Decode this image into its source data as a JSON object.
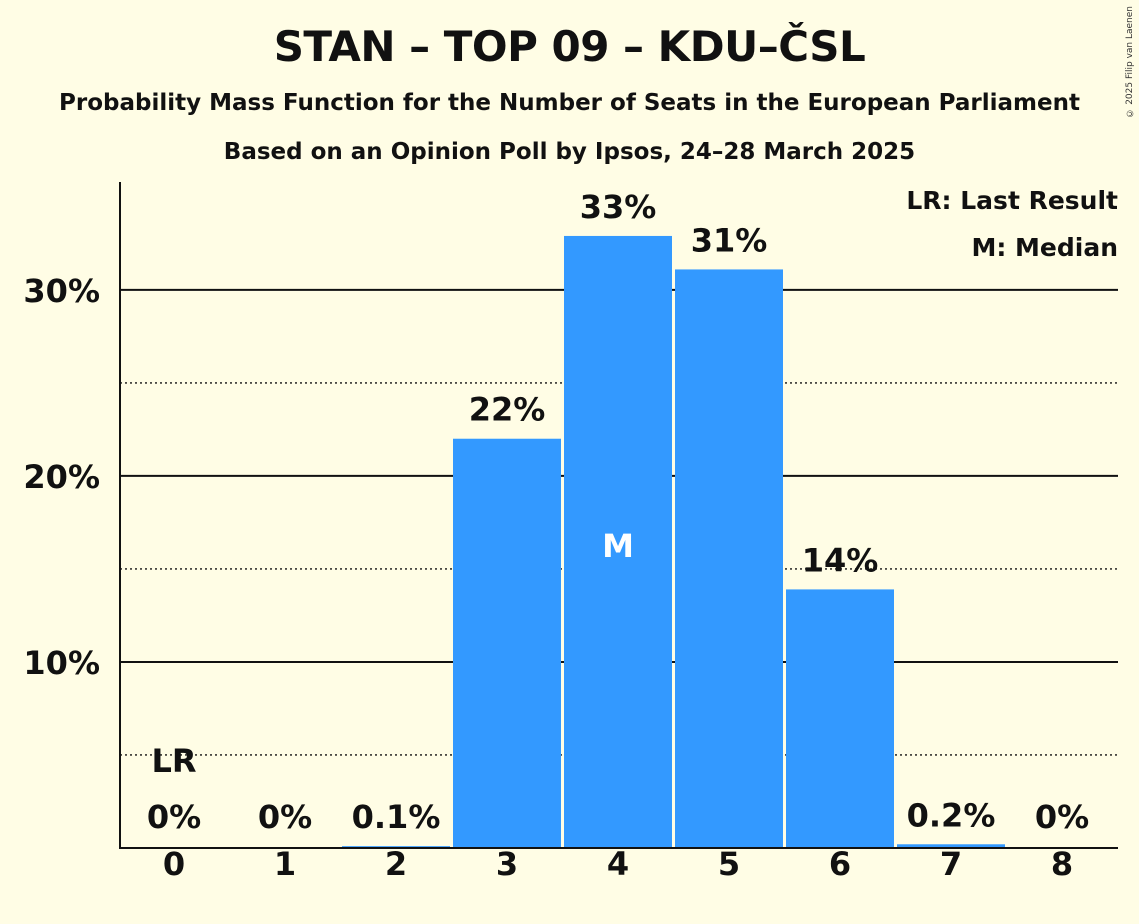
{
  "header": {
    "title": "STAN – TOP 09 – KDU–ČSL",
    "subtitle": "Probability Mass Function for the Number of Seats in the European Parliament",
    "subtitle2": "Based on an Opinion Poll by Ipsos, 24–28 March 2025",
    "copyright": "© 2025 Filip van Laenen"
  },
  "colors": {
    "background": "#FFFDE5",
    "bar": "#3399FF",
    "text": "#111111"
  },
  "chart_data": {
    "type": "bar",
    "title": "STAN – TOP 09 – KDU–ČSL",
    "categories": [
      "0",
      "1",
      "2",
      "3",
      "4",
      "5",
      "6",
      "7",
      "8"
    ],
    "values": [
      0,
      0,
      0.1,
      22,
      32.9,
      31.1,
      13.9,
      0.2,
      0
    ],
    "value_labels": [
      "0%",
      "0%",
      "0.1%",
      "22%",
      "33%",
      "31%",
      "14%",
      "0.2%",
      "0%"
    ],
    "xlabel": "",
    "ylabel": "",
    "ylim": [
      0,
      35.8
    ],
    "yticks": [
      10,
      20,
      30
    ],
    "ytick_labels": [
      "10%",
      "20%",
      "30%"
    ],
    "minor_gridlines": [
      5,
      15,
      25
    ],
    "last_result_index": 0,
    "last_result_label": "LR",
    "median_index": 4,
    "median_label": "M",
    "legend": [
      "LR: Last Result",
      "M: Median"
    ],
    "legend_position": "top-right"
  }
}
